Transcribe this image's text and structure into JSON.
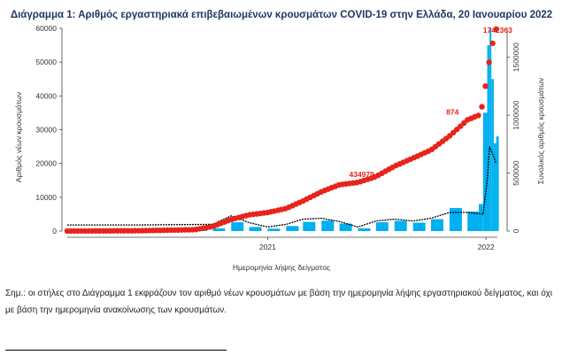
{
  "note": "Σημ.: οι στήλες στο Διάγραμμα 1 εκφράζουν τον αριθμό νέων κρουσμάτων με βάση την ημερομηνία λήψης εργαστηριακού δείγματος, και όχι με βάση την ημερομηνία ανακοίνωσης των κρουσμάτων.",
  "chart_data": {
    "type": "bar",
    "title": "Διάγραμμα 1: Αριθμός εργαστηριακά επιβεβαιωμένων κρουσμάτων COVID-19 στην Ελλάδα, 20 Ιανουαρίου 2022",
    "xlabel": "Ημερομηνία λήψης δείγματος",
    "ylabel": "Αριθμός νέων κρουσμάτων",
    "y2label": "Συνολικός αριθμός κρουσμάτων",
    "x_start": "2020-02",
    "x_end": "2022-01",
    "x_ticks": [
      "2021",
      "2022"
    ],
    "ylim": [
      0,
      60000
    ],
    "y_ticks": [
      0,
      10000,
      20000,
      30000,
      40000,
      50000,
      60000
    ],
    "y2lim": [
      0,
      1750000
    ],
    "y2_ticks": [
      0,
      500000,
      1000000,
      1500000
    ],
    "annotations": [
      "434979",
      "874",
      "1742363"
    ],
    "colors": {
      "bars": "#00b0f0",
      "cumulative": "#e8231c",
      "moving_avg": "#000000",
      "title": "#1f3864"
    },
    "series": [
      {
        "name": "new_cases",
        "type": "bar",
        "points": [
          [
            "2020-03",
            50
          ],
          [
            "2020-04",
            80
          ],
          [
            "2020-05",
            20
          ],
          [
            "2020-06",
            30
          ],
          [
            "2020-07",
            40
          ],
          [
            "2020-08",
            200
          ],
          [
            "2020-09",
            300
          ],
          [
            "2020-10",
            800
          ],
          [
            "2020-11",
            2600
          ],
          [
            "2020-12",
            1200
          ],
          [
            "2021-01",
            700
          ],
          [
            "2021-02",
            1500
          ],
          [
            "2021-03",
            2700
          ],
          [
            "2021-04",
            3100
          ],
          [
            "2021-05",
            2200
          ],
          [
            "2021-06",
            800
          ],
          [
            "2021-07",
            2600
          ],
          [
            "2021-08",
            3000
          ],
          [
            "2021-09",
            2500
          ],
          [
            "2021-10",
            3500
          ],
          [
            "2021-11",
            6800
          ],
          [
            "2021-12",
            5800
          ],
          [
            "2021-12-20",
            8000
          ],
          [
            "2021-12-27",
            35000
          ],
          [
            "2022-01-03",
            55000
          ],
          [
            "2022-01-07",
            60000
          ],
          [
            "2022-01-10",
            45000
          ],
          [
            "2022-01-14",
            26000
          ],
          [
            "2022-01-18",
            28000
          ]
        ]
      },
      {
        "name": "moving_avg",
        "type": "line",
        "points": [
          [
            "2020-02",
            1800
          ],
          [
            "2020-06",
            1800
          ],
          [
            "2020-10",
            2000
          ],
          [
            "2020-11",
            4500
          ],
          [
            "2020-12",
            2500
          ],
          [
            "2021-01",
            1200
          ],
          [
            "2021-02",
            2000
          ],
          [
            "2021-03",
            3500
          ],
          [
            "2021-04",
            3800
          ],
          [
            "2021-05",
            2800
          ],
          [
            "2021-06",
            1200
          ],
          [
            "2021-07",
            3000
          ],
          [
            "2021-08",
            3500
          ],
          [
            "2021-09",
            3000
          ],
          [
            "2021-10",
            3800
          ],
          [
            "2021-11",
            5500
          ],
          [
            "2021-12",
            5500
          ],
          [
            "2021-12-27",
            5000
          ],
          [
            "2022-01-03",
            15000
          ],
          [
            "2022-01-07",
            25000
          ],
          [
            "2022-01-14",
            22000
          ],
          [
            "2022-01-18",
            20000
          ]
        ]
      },
      {
        "name": "cumulative",
        "type": "line",
        "points": [
          [
            "2020-02",
            0
          ],
          [
            "2020-06",
            3000
          ],
          [
            "2020-09",
            12000
          ],
          [
            "2020-10",
            40000
          ],
          [
            "2020-11",
            100000
          ],
          [
            "2020-12",
            140000
          ],
          [
            "2021-01",
            160000
          ],
          [
            "2021-02",
            195000
          ],
          [
            "2021-03",
            260000
          ],
          [
            "2021-04",
            340000
          ],
          [
            "2021-05",
            400000
          ],
          [
            "2021-06",
            420000
          ],
          [
            "2021-07",
            470000
          ],
          [
            "2021-08",
            560000
          ],
          [
            "2021-09",
            630000
          ],
          [
            "2021-10",
            700000
          ],
          [
            "2021-11",
            820000
          ],
          [
            "2021-12",
            960000
          ],
          [
            "2021-12-20",
            1000000
          ],
          [
            "2021-12-27",
            1100000
          ],
          [
            "2022-01-03",
            1360000
          ],
          [
            "2022-01-10",
            1580000
          ],
          [
            "2022-01-18",
            1742363
          ]
        ]
      }
    ]
  }
}
